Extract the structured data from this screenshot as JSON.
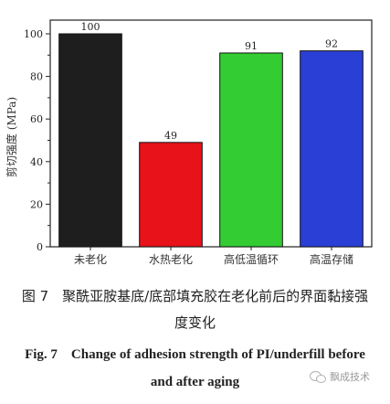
{
  "chart_data": {
    "type": "bar",
    "categories": [
      "未老化",
      "水热老化",
      "高低温循环",
      "高温存储"
    ],
    "values": [
      100,
      49,
      91,
      92
    ],
    "data_labels": [
      "100",
      "49",
      "91",
      "92"
    ],
    "colors": [
      "#1e1e1e",
      "#e8121a",
      "#33cc33",
      "#2a3fd6"
    ],
    "ylabel": "剪切强度 (MPa)",
    "ylim": [
      0,
      100
    ],
    "yticks": [
      0,
      20,
      40,
      60,
      80,
      100
    ],
    "grid": false,
    "legend": "none"
  },
  "caption": {
    "cn_line1": "图 7　聚酰亚胺基底/底部填充胶在老化前后的界面黏接强",
    "cn_line2": "度变化",
    "en_line1": "Fig. 7　Change of adhesion strength of PI/underfill before",
    "en_line2": "and after aging"
  },
  "watermark": {
    "text": "飘成技术"
  }
}
